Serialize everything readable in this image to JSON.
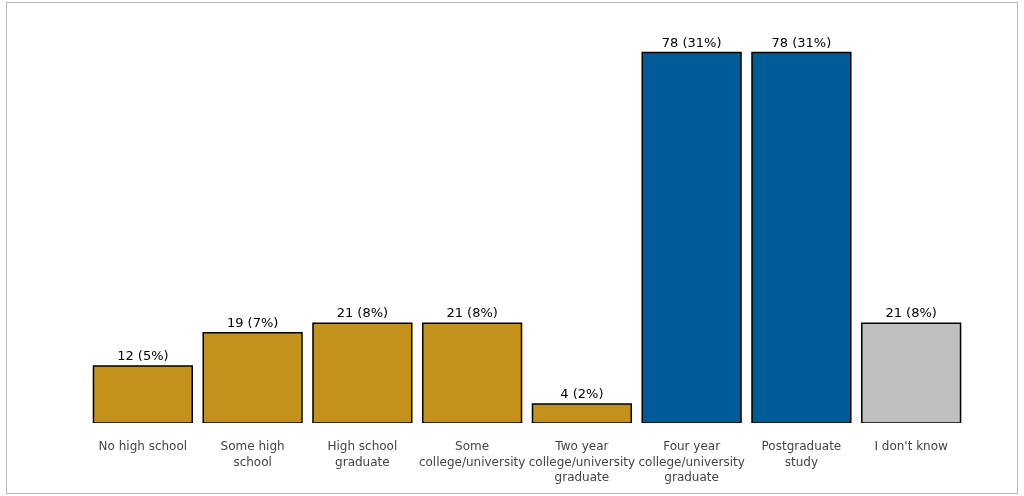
{
  "chart_data": {
    "type": "bar",
    "categories": [
      "No high school",
      "Some high school",
      "High school graduate",
      "Some college/university",
      "Two year college/university graduate",
      "Four year college/university graduate",
      "Postgraduate study",
      "I don't know"
    ],
    "values": [
      12,
      19,
      21,
      21,
      4,
      78,
      78,
      21
    ],
    "colors": [
      "#c4921a",
      "#c4921a",
      "#c4921a",
      "#c4921a",
      "#c4921a",
      "#005b99",
      "#005b99",
      "#bfbfbf"
    ],
    "value_labels": [
      "12 (5%)",
      "19 (7%)",
      "21 (8%)",
      "21 (8%)",
      "4 (2%)",
      "78 (31%)",
      "78 (31%)",
      "21 (8%)"
    ],
    "tick_labels": "x"
  }
}
